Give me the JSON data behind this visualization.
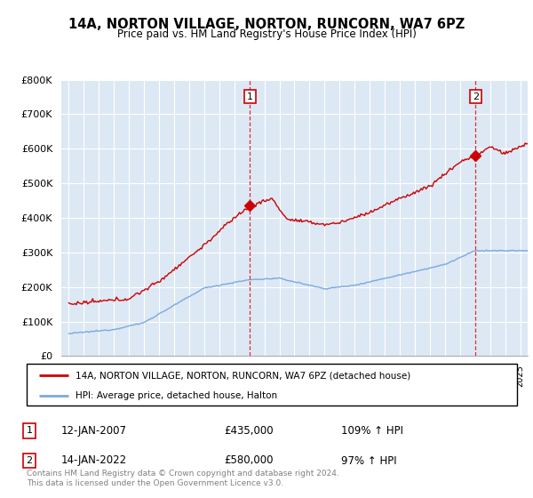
{
  "title": "14A, NORTON VILLAGE, NORTON, RUNCORN, WA7 6PZ",
  "subtitle": "Price paid vs. HM Land Registry's House Price Index (HPI)",
  "legend_line1": "14A, NORTON VILLAGE, NORTON, RUNCORN, WA7 6PZ (detached house)",
  "legend_line2": "HPI: Average price, detached house, Halton",
  "annotation1": {
    "label": "1",
    "date": "12-JAN-2007",
    "price": "£435,000",
    "hpi": "109% ↑ HPI"
  },
  "annotation2": {
    "label": "2",
    "date": "14-JAN-2022",
    "price": "£580,000",
    "hpi": "97% ↑ HPI"
  },
  "footer": "Contains HM Land Registry data © Crown copyright and database right 2024.\nThis data is licensed under the Open Government Licence v3.0.",
  "red_color": "#cc0000",
  "blue_color": "#7aaadd",
  "plot_bg": "#dde8f5",
  "marker1_x": 2007.04,
  "marker1_y": 435000,
  "marker2_x": 2022.04,
  "marker2_y": 580000,
  "vline1_x": 2007.04,
  "vline2_x": 2022.04,
  "ylim": [
    0,
    800000
  ],
  "xlim_start": 1994.5,
  "xlim_end": 2025.5
}
